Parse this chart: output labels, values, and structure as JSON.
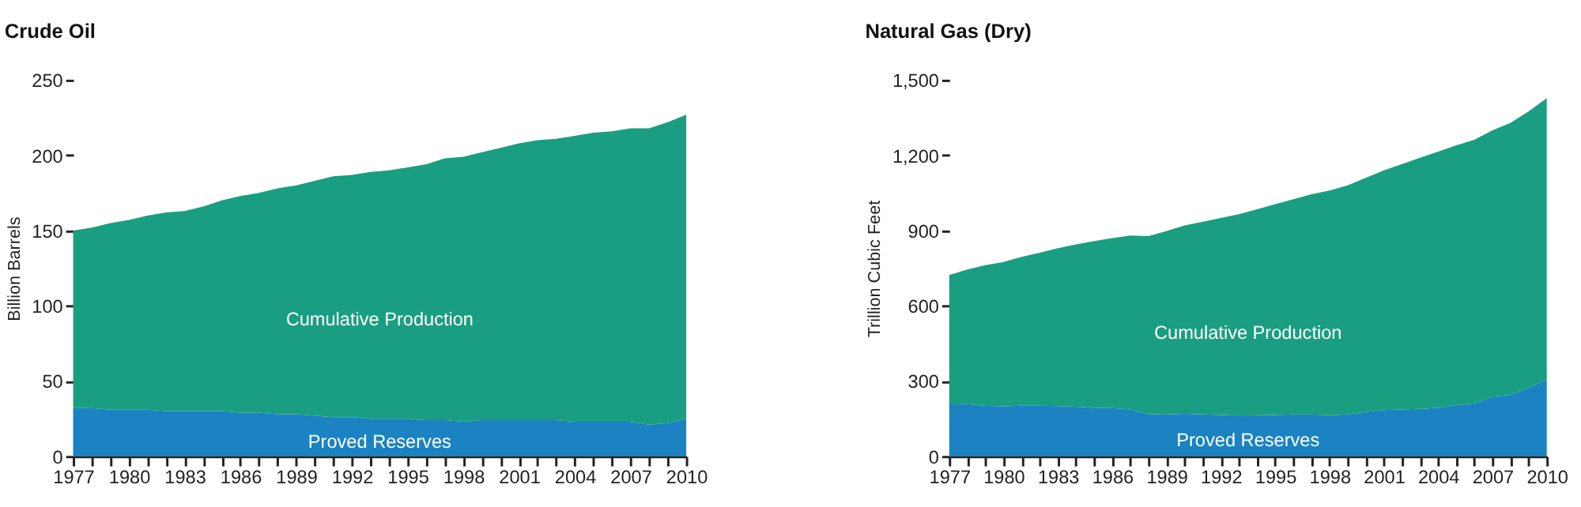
{
  "chart_data": [
    {
      "type": "area",
      "stacked": true,
      "title": "Crude Oil",
      "ylabel": "Billion Barrels",
      "x": [
        1977,
        1978,
        1979,
        1980,
        1981,
        1982,
        1983,
        1984,
        1985,
        1986,
        1987,
        1988,
        1989,
        1990,
        1991,
        1992,
        1993,
        1994,
        1995,
        1996,
        1997,
        1998,
        1999,
        2000,
        2001,
        2002,
        2003,
        2004,
        2005,
        2006,
        2007,
        2008,
        2009,
        2010
      ],
      "xlim": [
        1977,
        2010
      ],
      "xticks": [
        1977,
        {
          "value": 1978,
          "label": null
        },
        {
          "value": 1979,
          "label": null
        },
        1980,
        {
          "value": 1981,
          "label": null
        },
        {
          "value": 1982,
          "label": null
        },
        1983,
        {
          "value": 1984,
          "label": null
        },
        {
          "value": 1985,
          "label": null
        },
        1986,
        {
          "value": 1987,
          "label": null
        },
        {
          "value": 1988,
          "label": null
        },
        1989,
        {
          "value": 1990,
          "label": null
        },
        {
          "value": 1991,
          "label": null
        },
        1992,
        {
          "value": 1993,
          "label": null
        },
        {
          "value": 1994,
          "label": null
        },
        1995,
        {
          "value": 1996,
          "label": null
        },
        {
          "value": 1997,
          "label": null
        },
        1998,
        {
          "value": 1999,
          "label": null
        },
        {
          "value": 2000,
          "label": null
        },
        2001,
        {
          "value": 2002,
          "label": null
        },
        {
          "value": 2003,
          "label": null
        },
        2004,
        {
          "value": 2005,
          "label": null
        },
        {
          "value": 2006,
          "label": null
        },
        2007,
        {
          "value": 2008,
          "label": null
        },
        {
          "value": 2009,
          "label": null
        },
        2010
      ],
      "ylim": [
        0,
        250
      ],
      "yticks": [
        0,
        50,
        100,
        150,
        200,
        250
      ],
      "series": [
        {
          "name": "Proved Reserves",
          "color": "#1b83c1",
          "values": [
            32,
            32,
            31,
            31,
            31,
            30,
            30,
            30,
            30,
            29,
            29,
            28,
            28,
            27,
            26,
            26,
            25,
            25,
            25,
            24,
            24,
            23,
            24,
            24,
            24,
            24,
            24,
            23,
            23,
            23,
            23,
            21,
            22,
            25
          ]
        },
        {
          "name": "Cumulative Production",
          "color": "#1a9e81",
          "values": [
            118,
            120,
            124,
            126,
            129,
            132,
            133,
            136,
            140,
            144,
            146,
            150,
            152,
            156,
            160,
            161,
            164,
            165,
            167,
            170,
            174,
            176,
            178,
            181,
            184,
            186,
            187,
            190,
            192,
            193,
            195,
            197,
            200,
            202
          ]
        }
      ]
    },
    {
      "type": "area",
      "stacked": true,
      "title": "Natural Gas (Dry)",
      "ylabel": "Trillion Cubic Feet",
      "x": [
        1977,
        1978,
        1979,
        1980,
        1981,
        1982,
        1983,
        1984,
        1985,
        1986,
        1987,
        1988,
        1989,
        1990,
        1991,
        1992,
        1993,
        1994,
        1995,
        1996,
        1997,
        1998,
        1999,
        2000,
        2001,
        2002,
        2003,
        2004,
        2005,
        2006,
        2007,
        2008,
        2009,
        2010
      ],
      "xlim": [
        1977,
        2010
      ],
      "xticks": [
        1977,
        {
          "value": 1978,
          "label": null
        },
        {
          "value": 1979,
          "label": null
        },
        1980,
        {
          "value": 1981,
          "label": null
        },
        {
          "value": 1982,
          "label": null
        },
        1983,
        {
          "value": 1984,
          "label": null
        },
        {
          "value": 1985,
          "label": null
        },
        1986,
        {
          "value": 1987,
          "label": null
        },
        {
          "value": 1988,
          "label": null
        },
        1989,
        {
          "value": 1990,
          "label": null
        },
        {
          "value": 1991,
          "label": null
        },
        1992,
        {
          "value": 1993,
          "label": null
        },
        {
          "value": 1994,
          "label": null
        },
        1995,
        {
          "value": 1996,
          "label": null
        },
        {
          "value": 1997,
          "label": null
        },
        1998,
        {
          "value": 1999,
          "label": null
        },
        {
          "value": 2000,
          "label": null
        },
        2001,
        {
          "value": 2002,
          "label": null
        },
        {
          "value": 2003,
          "label": null
        },
        2004,
        {
          "value": 2005,
          "label": null
        },
        {
          "value": 2006,
          "label": null
        },
        2007,
        {
          "value": 2008,
          "label": null
        },
        {
          "value": 2009,
          "label": null
        },
        2010
      ],
      "ylim": [
        0,
        1500
      ],
      "yticks": [
        0,
        300,
        600,
        900,
        {
          "value": 1200,
          "label": "1,200"
        },
        {
          "value": 1500,
          "label": "1,500"
        }
      ],
      "series": [
        {
          "name": "Proved Reserves",
          "color": "#1b83c1",
          "values": [
            207,
            208,
            201,
            199,
            202,
            202,
            200,
            198,
            193,
            192,
            187,
            168,
            167,
            169,
            167,
            165,
            162,
            164,
            165,
            167,
            167,
            164,
            167,
            177,
            184,
            187,
            189,
            193,
            204,
            211,
            238,
            245,
            273,
            305
          ]
        },
        {
          "name": "Cumulative Production",
          "color": "#1a9e81",
          "values": [
            516,
            537,
            561,
            576,
            593,
            610,
            630,
            647,
            665,
            678,
            693,
            710,
            731,
            751,
            768,
            785,
            803,
            821,
            840,
            858,
            878,
            896,
            913,
            933,
            956,
            978,
            1001,
            1022,
            1036,
            1051,
            1062,
            1085,
            1102,
            1123
          ]
        }
      ]
    }
  ]
}
